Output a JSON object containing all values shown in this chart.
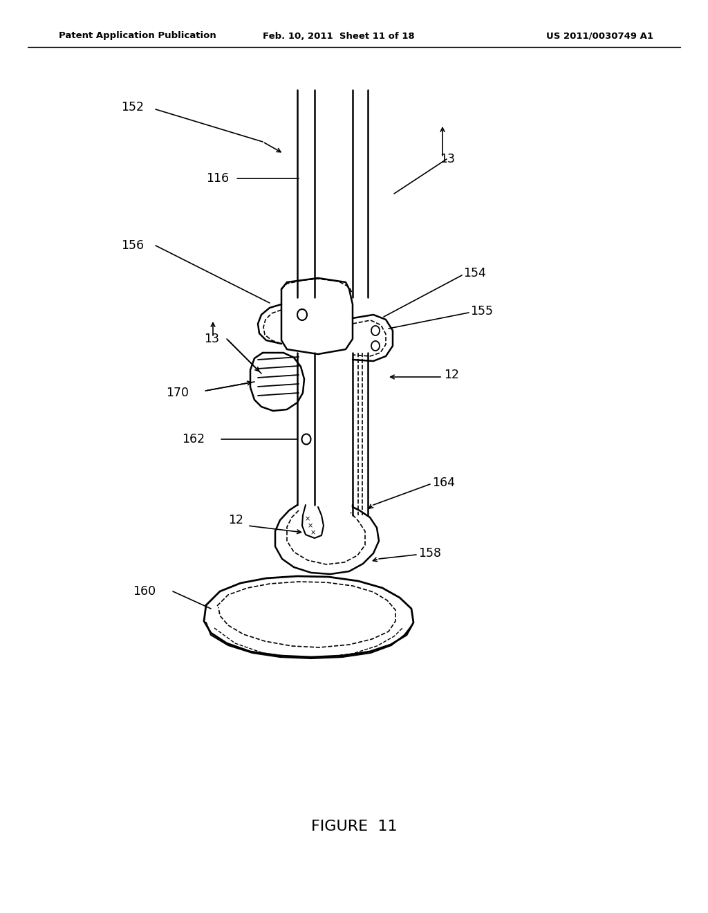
{
  "title": "FIGURE  11",
  "header_left": "Patent Application Publication",
  "header_center": "Feb. 10, 2011  Sheet 11 of 18",
  "header_right": "US 2011/0030749 A1",
  "bg_color": "#ffffff",
  "fig_w": 10.24,
  "fig_h": 13.2,
  "dpi": 100,
  "label_fontsize": 12.5,
  "header_fontsize": 9.5,
  "title_fontsize": 16
}
